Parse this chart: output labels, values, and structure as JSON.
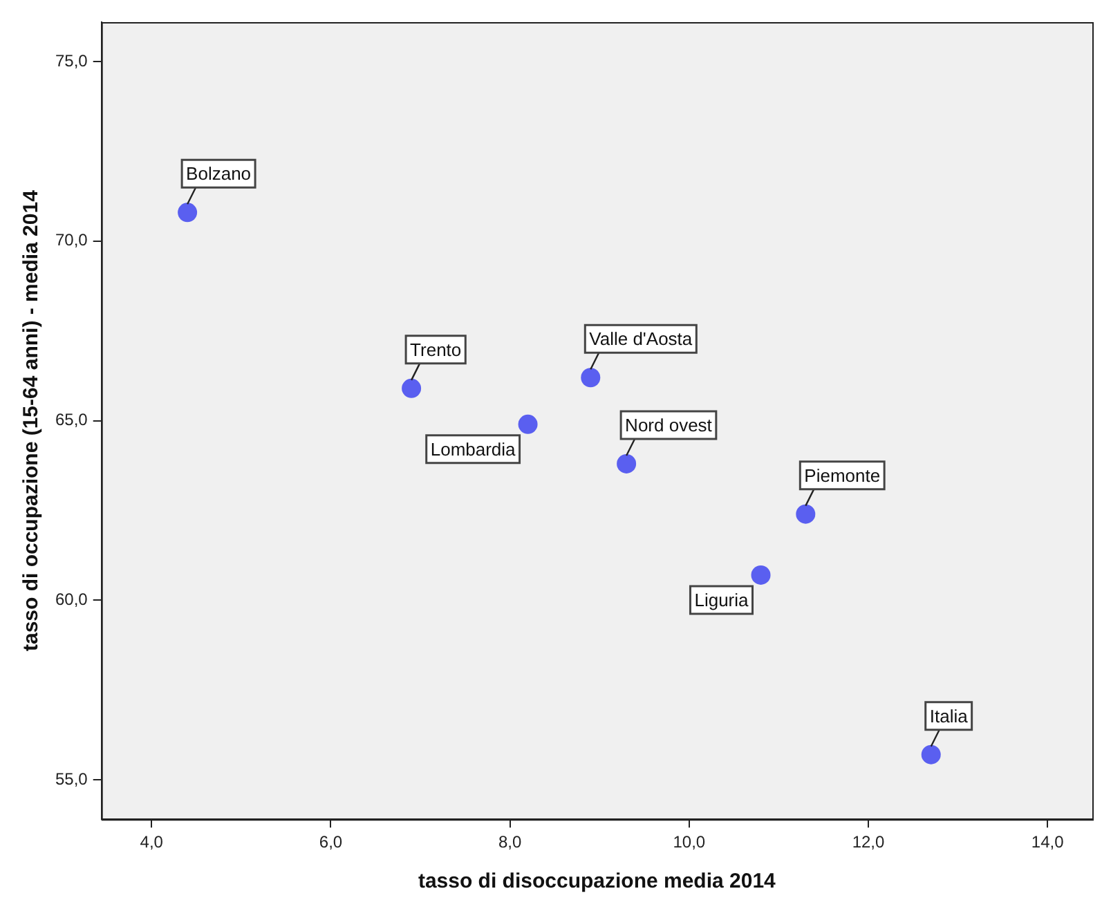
{
  "chart_data": {
    "type": "scatter",
    "xlabel": "tasso di disoccupazione media 2014",
    "ylabel": "tasso di occupazione (15-64 anni) - media 2014",
    "series": [
      {
        "color": "#5a5ff0",
        "x": [
          4.4,
          6.9,
          8.9,
          8.2,
          9.3,
          11.3,
          10.8,
          12.7
        ],
        "values": [
          70.8,
          65.9,
          66.2,
          64.9,
          63.8,
          62.4,
          60.7,
          55.7
        ]
      }
    ],
    "annotations": [
      {
        "text": "Bolzano",
        "x": 4.4,
        "y": 70.8
      },
      {
        "text": "Trento",
        "x": 6.9,
        "y": 65.9
      },
      {
        "text": "Valle d'Aosta",
        "x": 8.9,
        "y": 66.2
      },
      {
        "text": "Lombardia",
        "x": 8.2,
        "y": 64.9
      },
      {
        "text": "Nord ovest",
        "x": 9.3,
        "y": 63.8
      },
      {
        "text": "Piemonte",
        "x": 11.3,
        "y": 62.4
      },
      {
        "text": "Liguria",
        "x": 10.8,
        "y": 60.7
      },
      {
        "text": "Italia",
        "x": 12.7,
        "y": 55.7
      }
    ],
    "xlim": [
      3.44,
      14.5
    ],
    "xticks": [
      {
        "value": 4,
        "label": "4,0"
      },
      {
        "value": 6,
        "label": "6,0"
      },
      {
        "value": 8,
        "label": "8,0"
      },
      {
        "value": 10,
        "label": "10,0"
      },
      {
        "value": 12,
        "label": "12,0"
      },
      {
        "value": 14,
        "label": "14,0"
      }
    ],
    "ylim": [
      53.9,
      76.1
    ],
    "yticks": [
      {
        "value": 55,
        "label": "55,0"
      },
      {
        "value": 60,
        "label": "60,0"
      },
      {
        "value": 65,
        "label": "65,0"
      },
      {
        "value": 70,
        "label": "70,0"
      },
      {
        "value": 75,
        "label": "75,0"
      }
    ],
    "grid": false,
    "legend": false,
    "marker": "circle"
  }
}
